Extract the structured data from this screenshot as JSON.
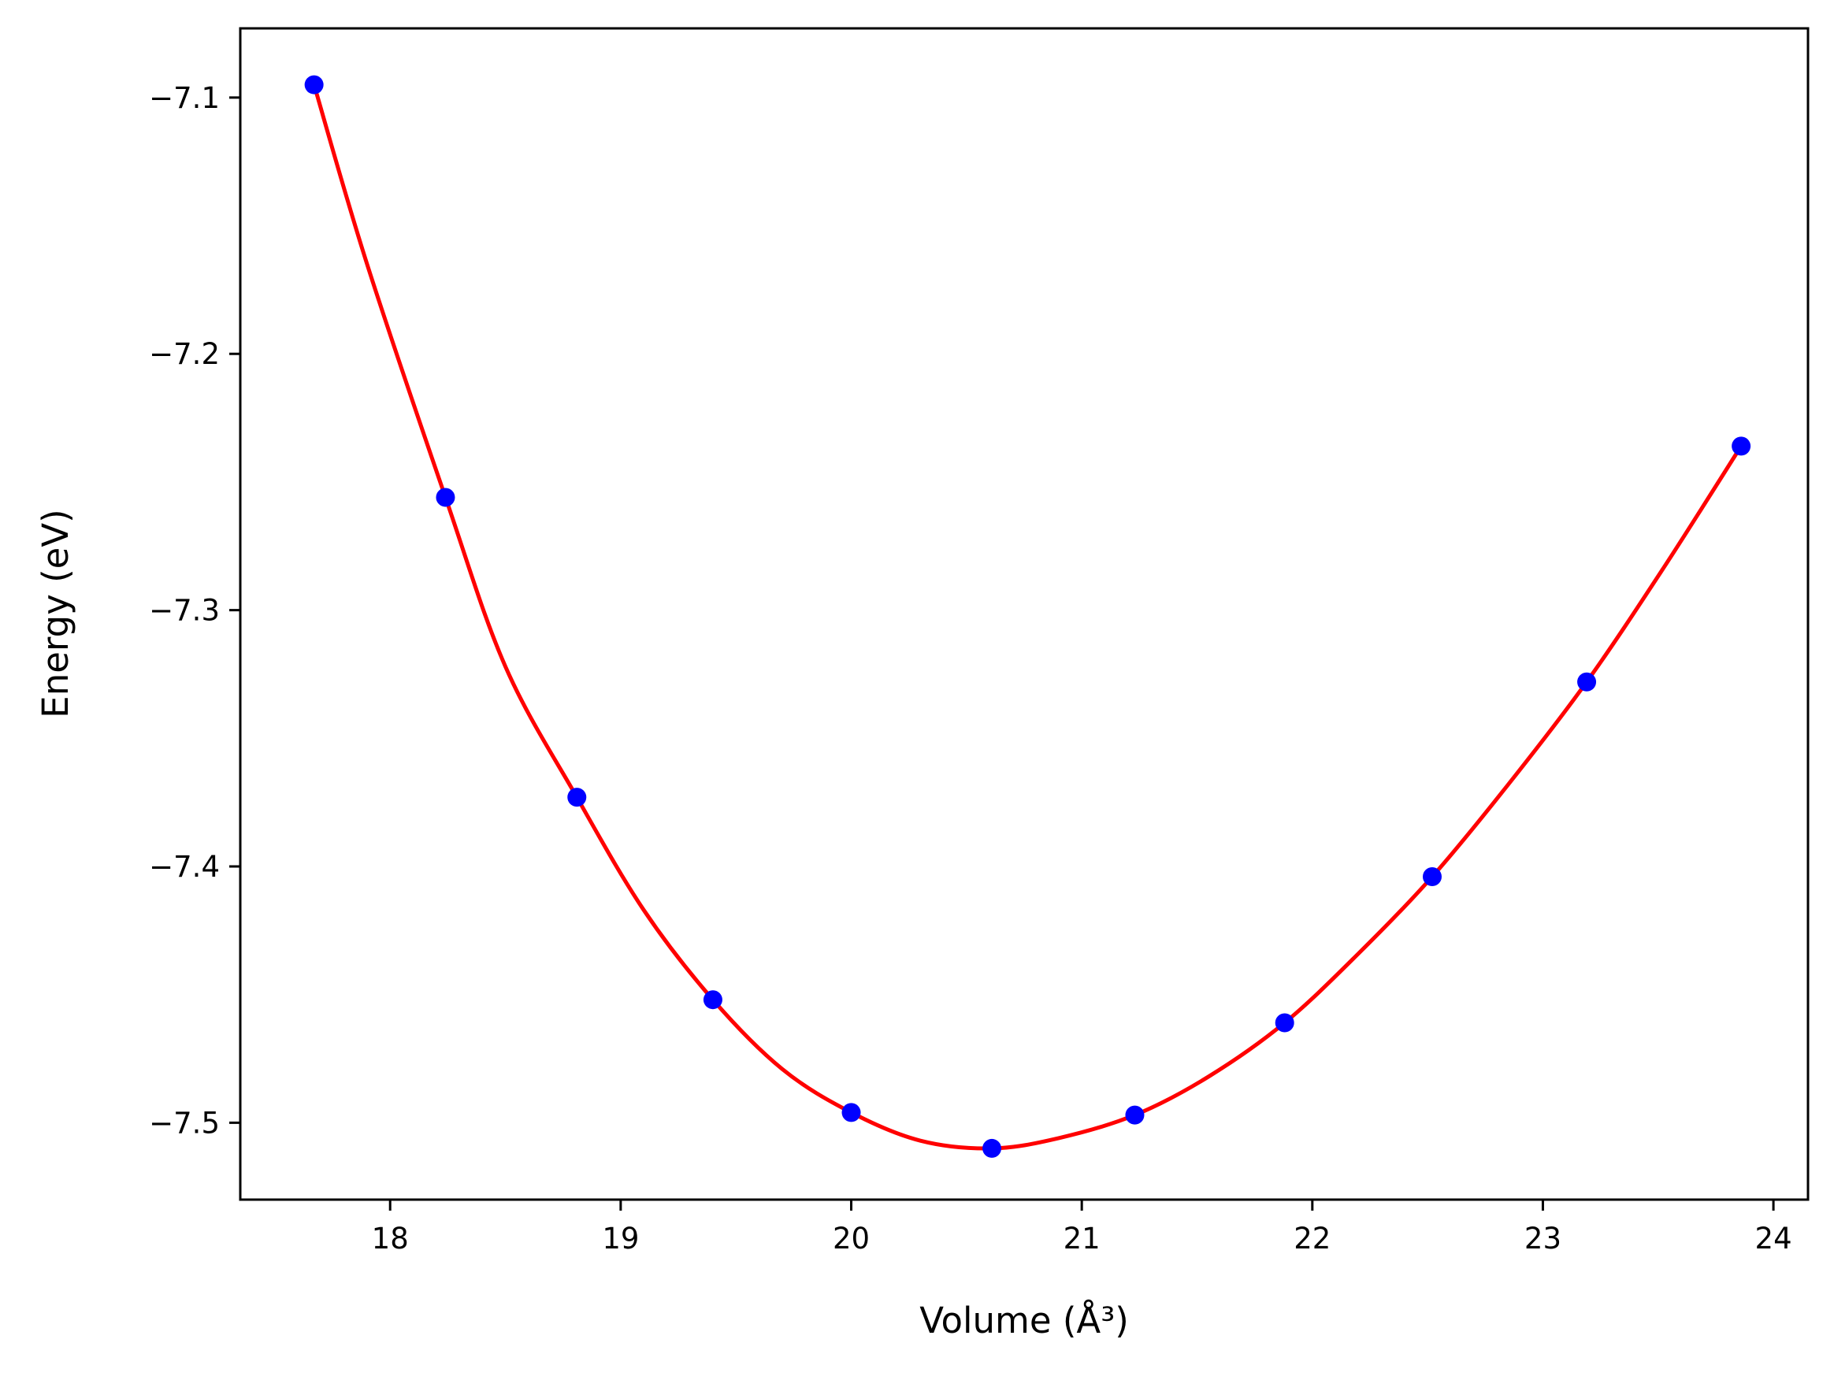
{
  "chart_data": {
    "type": "line",
    "xlabel": "Volume (Å³)",
    "ylabel": "Energy (eV)",
    "xlim": [
      17.35,
      24.15
    ],
    "ylim": [
      -7.53,
      -7.073
    ],
    "x_ticks": [
      18,
      19,
      20,
      21,
      22,
      23,
      24
    ],
    "x_tick_labels": [
      "18",
      "19",
      "20",
      "21",
      "22",
      "23",
      "24"
    ],
    "y_ticks": [
      -7.1,
      -7.2,
      -7.3,
      -7.4,
      -7.5
    ],
    "y_tick_labels": [
      "−7.1",
      "−7.2",
      "−7.3",
      "−7.4",
      "−7.5"
    ],
    "grid": false,
    "series": [
      {
        "kind": "scatter",
        "color": "#0000ff",
        "x": [
          17.67,
          18.24,
          18.81,
          19.4,
          20.0,
          20.61,
          21.23,
          21.88,
          22.52,
          23.19,
          23.86
        ],
        "y": [
          -7.095,
          -7.256,
          -7.373,
          -7.452,
          -7.496,
          -7.51,
          -7.497,
          -7.461,
          -7.404,
          -7.328,
          -7.236
        ]
      },
      {
        "kind": "line",
        "color": "#ff0000",
        "x": [
          17.67,
          17.9,
          18.24,
          18.5,
          18.81,
          19.1,
          19.4,
          19.7,
          20.0,
          20.3,
          20.61,
          20.9,
          21.23,
          21.55,
          21.88,
          22.2,
          22.52,
          22.85,
          23.19,
          23.52,
          23.86
        ],
        "y": [
          -7.095,
          -7.165,
          -7.256,
          -7.322,
          -7.373,
          -7.417,
          -7.452,
          -7.479,
          -7.496,
          -7.507,
          -7.51,
          -7.506,
          -7.497,
          -7.482,
          -7.461,
          -7.434,
          -7.404,
          -7.368,
          -7.328,
          -7.284,
          -7.236
        ]
      }
    ]
  }
}
